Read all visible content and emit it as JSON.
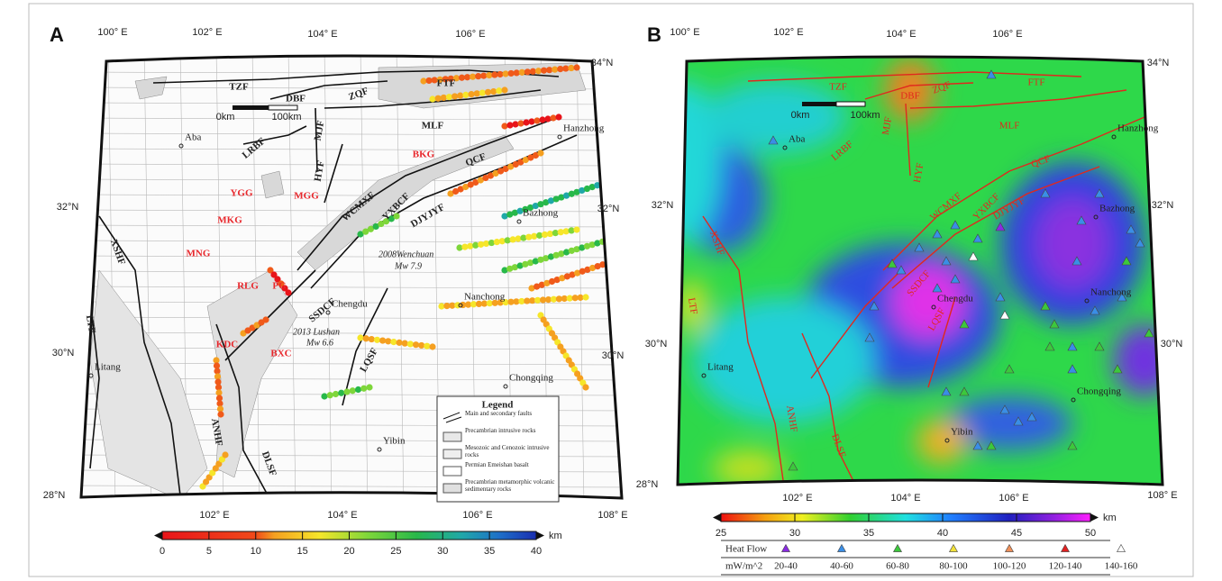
{
  "panels": [
    {
      "label": "A",
      "top_lon": [
        "100° E",
        "102° E",
        "104° E",
        "106° E"
      ],
      "bottom_lon": [
        "102° E",
        "104° E",
        "106° E",
        "108° E"
      ],
      "left_lat": [
        "32°N",
        "30°N",
        "28°N"
      ],
      "right_lat": [
        "34°N",
        "32°N",
        "30°N"
      ],
      "faults": [
        "TZF",
        "DBF",
        "ZQF",
        "FTF",
        "MLF",
        "MJF",
        "LRBF",
        "HYF",
        "QCF",
        "WCMXF",
        "YXBCF",
        "DJYJYF",
        "XSHF",
        "SSDCF",
        "LTF",
        "LQSF",
        "ANHF",
        "DLSF"
      ],
      "units": [
        "BKG",
        "YGG",
        "MGG",
        "MKG",
        "MNG",
        "RLG",
        "PG",
        "KDC",
        "BXC"
      ],
      "places": [
        "Aba",
        "Hanzhong",
        "Bazhong",
        "Nanchong",
        "Chengdu",
        "Litang",
        "Chongqing",
        "Yibin"
      ],
      "annotations": [
        "2008Wenchuan",
        "Mw 7.9",
        "2013 Lushan",
        "Mw 6.6"
      ],
      "scale": [
        "0km",
        "100km"
      ],
      "legend": {
        "title": "Legend",
        "items": [
          "Main and secondary faults",
          "Precambrian intrusive rocks",
          "Mesozoic and Cenozoic intrusive rocks",
          "Permian Emeishan basalt",
          "Precambrian metamorphic volcanic sedimentary rocks"
        ]
      },
      "colorbar": {
        "ticks": [
          0,
          5,
          10,
          15,
          20,
          25,
          30,
          35,
          40
        ],
        "unit": "km"
      }
    },
    {
      "label": "B",
      "top_lon": [
        "100° E",
        "102° E",
        "104° E",
        "106° E"
      ],
      "bottom_lon": [
        "102° E",
        "104° E",
        "106° E",
        "108° E"
      ],
      "left_lat": [
        "32°N",
        "30°N",
        "28°N"
      ],
      "right_lat": [
        "34°N",
        "32°N",
        "30°N"
      ],
      "faults": [
        "TZF",
        "DBF",
        "ZQF",
        "FTF",
        "MJF",
        "LRBF",
        "MLF",
        "HYF",
        "QCF",
        "WCMXF",
        "YXBCF",
        "DJYJYF",
        "XSHF",
        "SSDCF",
        "LTF",
        "LQSF",
        "ANHF",
        "DLSF"
      ],
      "places": [
        "Aba",
        "Hanzhong",
        "Bazhong",
        "Chengdu",
        "Nanchong",
        "Litang",
        "Chongqing",
        "Yibin"
      ],
      "scale": [
        "0km",
        "100km"
      ],
      "colorbar": {
        "ticks": [
          25,
          30,
          35,
          40,
          45,
          50
        ],
        "unit": "km"
      },
      "heat_flow": {
        "header": "Heat Flow",
        "unit": "mW/m^2",
        "classes": [
          {
            "range": "20-40",
            "color": "#8a2be2"
          },
          {
            "range": "40-60",
            "color": "#3a8ee6"
          },
          {
            "range": "60-80",
            "color": "#3cc83c"
          },
          {
            "range": "80-100",
            "color": "#f2e23a"
          },
          {
            "range": "100-120",
            "color": "#f0905a"
          },
          {
            "range": "120-140",
            "color": "#e02020"
          },
          {
            "range": "140-160",
            "color": "#ffffff"
          }
        ]
      }
    }
  ]
}
